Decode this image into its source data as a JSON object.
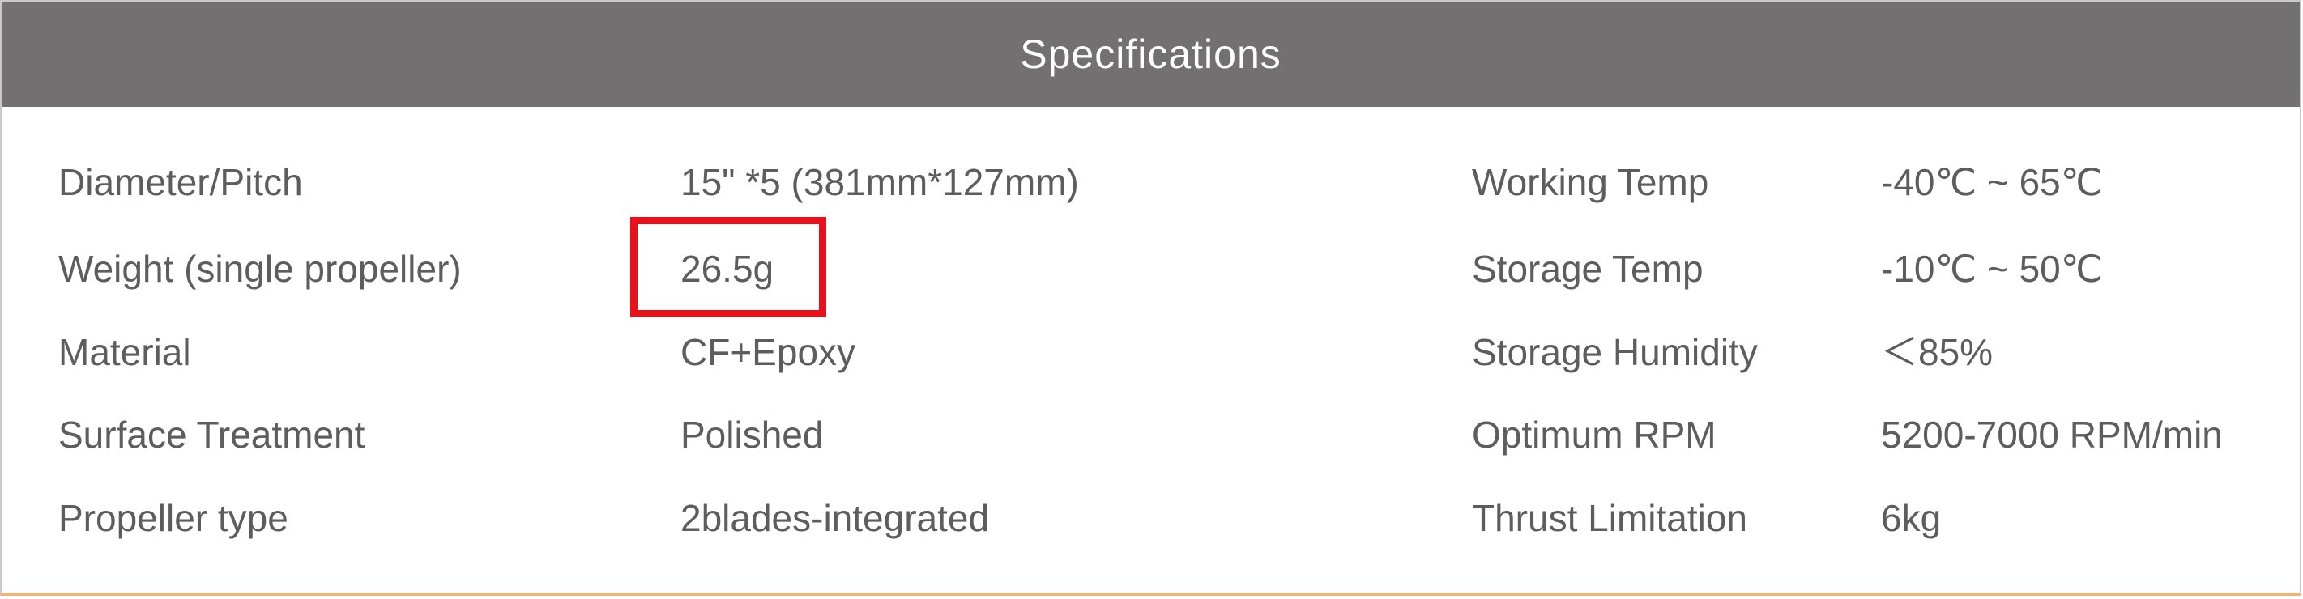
{
  "header": {
    "title": "Specifications"
  },
  "rows": [
    {
      "left_label": "Diameter/Pitch",
      "left_value": "15\" *5 (381mm*127mm)",
      "right_label": "Working Temp",
      "right_value": "-40℃ ~ 65℃"
    },
    {
      "left_label": "Weight (single propeller)",
      "left_value": "26.5g",
      "right_label": "Storage Temp",
      "right_value": "-10℃ ~ 50℃"
    },
    {
      "left_label": "Material",
      "left_value": "CF+Epoxy",
      "right_label": "Storage Humidity",
      "right_value": "＜85%"
    },
    {
      "left_label": "Surface Treatment",
      "left_value": "Polished",
      "right_label": "Optimum RPM",
      "right_value": "5200-7000 RPM/min"
    },
    {
      "left_label": "Propeller type",
      "left_value": "2blades-integrated",
      "right_label": "Thrust Limitation",
      "right_value": "6kg"
    }
  ],
  "colors": {
    "header_background": "#727071",
    "highlight_border": "#e8111b",
    "bottom_accent": "#f0b47a",
    "text": "#5d5d5d"
  }
}
